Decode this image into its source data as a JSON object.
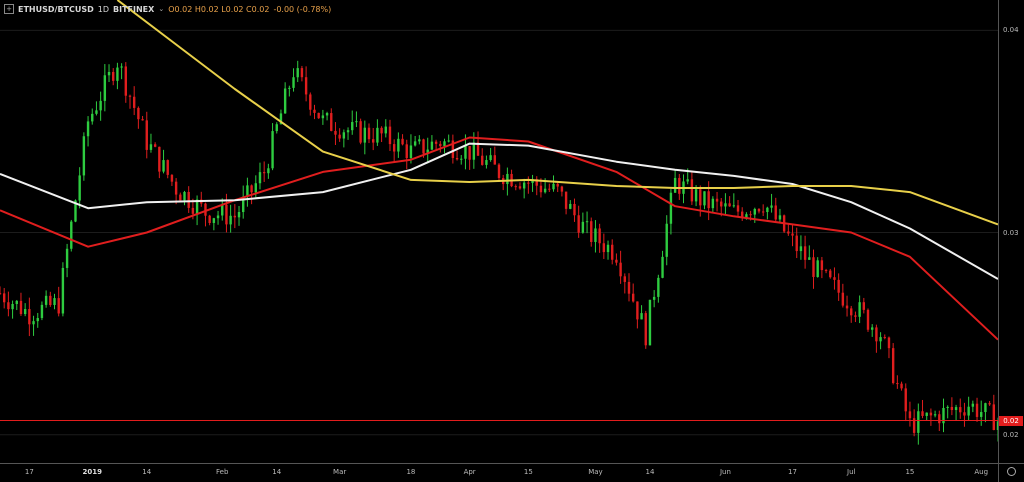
{
  "legend": {
    "expand_icon": "square-plus-icon",
    "symbol": "ETHUSD/BTCUSD",
    "interval": "1D",
    "exchange": "BITFINEX",
    "chevron_icon": "chevron-down-icon",
    "ohlc": "O0.02 H0.02 L0.02 C0.02",
    "change": "-0.00 (-0.78%)"
  },
  "price_axis": {
    "ticks": [
      "0.04",
      "0.03",
      "0.02"
    ],
    "last_price": "0.02"
  },
  "time_axis": {
    "ticks": [
      {
        "label": "17",
        "bold": false
      },
      {
        "label": "2019",
        "bold": true
      },
      {
        "label": "14",
        "bold": false
      },
      {
        "label": "Feb",
        "bold": false
      },
      {
        "label": "14",
        "bold": false
      },
      {
        "label": "Mar",
        "bold": false
      },
      {
        "label": "18",
        "bold": false
      },
      {
        "label": "Apr",
        "bold": false
      },
      {
        "label": "15",
        "bold": false
      },
      {
        "label": "May",
        "bold": false
      },
      {
        "label": "14",
        "bold": false
      },
      {
        "label": "Jun",
        "bold": false
      },
      {
        "label": "17",
        "bold": false
      },
      {
        "label": "Jul",
        "bold": false
      },
      {
        "label": "15",
        "bold": false
      },
      {
        "label": "Aug",
        "bold": false
      }
    ],
    "settings_icon": "gear-icon"
  },
  "colors": {
    "up": "#2ecc40",
    "down": "#e01e1e",
    "ma_red": "#e01e1e",
    "ma_white": "#f0f0f0",
    "ma_yellow": "#e8d04a",
    "grid": "#1c1c1c",
    "last_price": "#e21d1d"
  },
  "chart_data": {
    "type": "line",
    "title": "ETHUSD/BTCUSD 1D BITFINEX",
    "ylim": [
      0.0186,
      0.0415
    ],
    "x_range": [
      "2018-12-10",
      "2019-08-05"
    ],
    "price_series": {
      "dates": [
        "2018-12-10",
        "2018-12-17",
        "2018-12-24",
        "2018-12-31",
        "2019-01-07",
        "2019-01-14",
        "2019-01-21",
        "2019-01-28",
        "2019-02-04",
        "2019-02-11",
        "2019-02-18",
        "2019-02-25",
        "2019-03-04",
        "2019-03-11",
        "2019-03-18",
        "2019-03-25",
        "2019-04-01",
        "2019-04-08",
        "2019-04-15",
        "2019-04-22",
        "2019-04-29",
        "2019-05-06",
        "2019-05-13",
        "2019-05-20",
        "2019-05-27",
        "2019-06-03",
        "2019-06-10",
        "2019-06-17",
        "2019-06-24",
        "2019-07-01",
        "2019-07-08",
        "2019-07-15",
        "2019-07-22",
        "2019-07-29",
        "2019-08-05"
      ],
      "close": [
        0.027,
        0.026,
        0.0265,
        0.0355,
        0.0385,
        0.0345,
        0.0322,
        0.031,
        0.0308,
        0.033,
        0.038,
        0.0355,
        0.035,
        0.0348,
        0.034,
        0.0345,
        0.034,
        0.033,
        0.0325,
        0.032,
        0.03,
        0.029,
        0.025,
        0.0325,
        0.0315,
        0.031,
        0.0315,
        0.0295,
        0.0278,
        0.0265,
        0.025,
        0.0205,
        0.021,
        0.0215,
        0.0207
      ]
    },
    "series": [
      {
        "color": "red",
        "dates": [
          "2018-12-10",
          "2018-12-31",
          "2019-01-14",
          "2019-02-04",
          "2019-02-25",
          "2019-03-18",
          "2019-04-01",
          "2019-04-15",
          "2019-05-06",
          "2019-05-20",
          "2019-06-03",
          "2019-06-17",
          "2019-07-01",
          "2019-07-15",
          "2019-08-05"
        ],
        "values": [
          0.0311,
          0.0293,
          0.03,
          0.0316,
          0.033,
          0.0336,
          0.0347,
          0.0345,
          0.033,
          0.0313,
          0.0308,
          0.0304,
          0.03,
          0.0288,
          0.0247
        ]
      },
      {
        "color": "white",
        "dates": [
          "2018-12-10",
          "2018-12-31",
          "2019-01-14",
          "2019-02-04",
          "2019-02-25",
          "2019-03-18",
          "2019-04-01",
          "2019-04-15",
          "2019-05-06",
          "2019-05-20",
          "2019-06-03",
          "2019-06-17",
          "2019-07-01",
          "2019-07-15",
          "2019-08-05"
        ],
        "values": [
          0.0329,
          0.0312,
          0.0315,
          0.0316,
          0.032,
          0.0331,
          0.0344,
          0.0343,
          0.0335,
          0.0331,
          0.0328,
          0.0324,
          0.0315,
          0.0302,
          0.0277
        ]
      },
      {
        "color": "yellow",
        "dates": [
          "2019-01-07",
          "2019-01-21",
          "2019-02-04",
          "2019-02-25",
          "2019-03-18",
          "2019-04-01",
          "2019-04-15",
          "2019-05-06",
          "2019-05-20",
          "2019-06-03",
          "2019-06-17",
          "2019-07-01",
          "2019-07-15",
          "2019-08-05"
        ],
        "values": [
          0.0415,
          0.0393,
          0.0371,
          0.034,
          0.0326,
          0.0325,
          0.0326,
          0.0323,
          0.0322,
          0.0322,
          0.0323,
          0.0323,
          0.032,
          0.0304
        ]
      }
    ]
  }
}
